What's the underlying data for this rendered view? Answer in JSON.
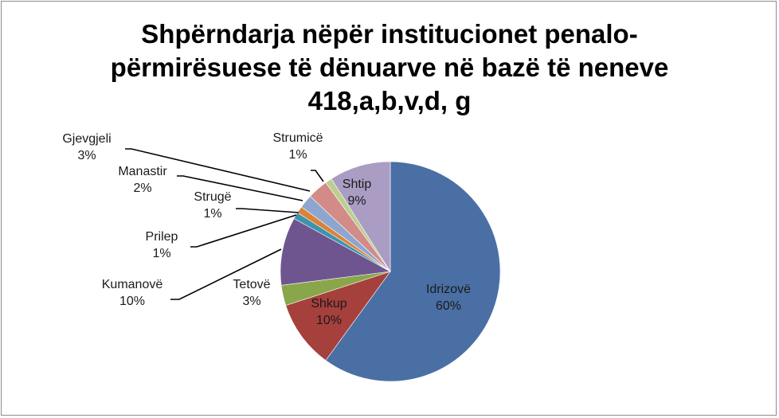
{
  "chart_data": {
    "type": "pie",
    "title_lines": [
      "Shpërndarja nëpër institucionet penalo-",
      "përmirësuese të dënuarve në bazë të neneve",
      "418,a,b,v,d, g"
    ],
    "slices": [
      {
        "name": "Idrizovë",
        "label": "60%",
        "value": 60,
        "color": "#4a6fa5"
      },
      {
        "name": "Shkup",
        "label": "10%",
        "value": 10,
        "color": "#a5403d"
      },
      {
        "name": "Tetovë",
        "label": "3%",
        "value": 3,
        "color": "#8aa64a"
      },
      {
        "name": "Kumanovë",
        "label": "10%",
        "value": 10,
        "color": "#6f5590"
      },
      {
        "name": "Prilep",
        "label": "1%",
        "value": 1,
        "color": "#3e93ab"
      },
      {
        "name": "Strugë",
        "label": "1%",
        "value": 1,
        "color": "#d9833a"
      },
      {
        "name": "Manastir",
        "label": "2%",
        "value": 2,
        "color": "#8ea6cf"
      },
      {
        "name": "Gjevgjeli",
        "label": "3%",
        "value": 3,
        "color": "#d38b88"
      },
      {
        "name": "Strumicë",
        "label": "1%",
        "value": 1,
        "color": "#bccf92"
      },
      {
        "name": "Shtip",
        "label": "9%",
        "value": 9,
        "color": "#ab9cc4"
      }
    ]
  }
}
